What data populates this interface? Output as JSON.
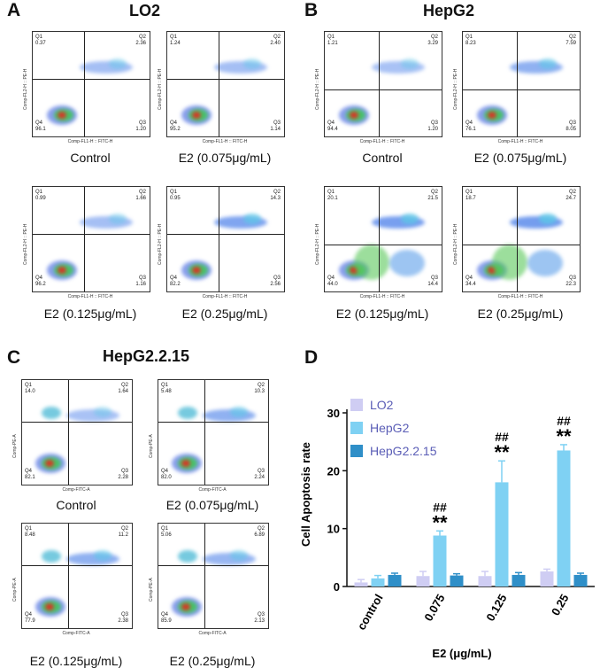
{
  "panels": {
    "A": {
      "letter": "A",
      "title": "LO2"
    },
    "B": {
      "letter": "B",
      "title": "HepG2"
    },
    "C": {
      "letter": "C",
      "title": "HepG2.2.15"
    },
    "D": {
      "letter": "D"
    }
  },
  "flow_axis": {
    "ab_x": "Comp-FL1-H :: FITC-H",
    "ab_y": "Comp-FL2-H :: PE-H",
    "c_x": "Comp-FITC-A",
    "c_y": "Comp-PE-A"
  },
  "quadrant_labels": {
    "q1": "Q1",
    "q2": "Q2",
    "q3": "Q3",
    "q4": "Q4"
  },
  "flow_plots": {
    "A": [
      {
        "caption": "Control",
        "q1": "0.37",
        "q2": "2.36",
        "q3": "1.20",
        "q4": "96.1"
      },
      {
        "caption": "E2  (0.075μg/mL)",
        "q1": "1.24",
        "q2": "2.40",
        "q3": "1.14",
        "q4": "95.2"
      },
      {
        "caption": "E2  (0.125μg/mL)",
        "q1": "0.99",
        "q2": "1.66",
        "q3": "1.16",
        "q4": "96.2"
      },
      {
        "caption": "E2  (0.25μg/mL)",
        "q1": "0.95",
        "q2": "14.3",
        "q3": "2.56",
        "q4": "82.2"
      }
    ],
    "B": [
      {
        "caption": "Control",
        "q1": "1.21",
        "q2": "3.29",
        "q3": "1.20",
        "q4": "94.4"
      },
      {
        "caption": "E2  (0.075μg/mL)",
        "q1": "8.23",
        "q2": "7.59",
        "q3": "8.05",
        "q4": "76.1"
      },
      {
        "caption": "E2  (0.125μg/mL)",
        "q1": "20.1",
        "q2": "21.5",
        "q3": "14.4",
        "q4": "44.0"
      },
      {
        "caption": "E2  (0.25μg/mL)",
        "q1": "18.7",
        "q2": "24.7",
        "q3": "22.3",
        "q4": "34.4"
      }
    ],
    "C": [
      {
        "caption": "Control",
        "q1": "14.0",
        "q2": "1.64",
        "q3": "2.28",
        "q4": "82.1"
      },
      {
        "caption": "E2  (0.075μg/mL)",
        "q1": "5.48",
        "q2": "10.3",
        "q3": "2.24",
        "q4": "82.0"
      },
      {
        "caption": "E2  (0.125μg/mL)",
        "q1": "8.48",
        "q2": "11.2",
        "q3": "2.38",
        "q4": "77.9"
      },
      {
        "caption": "E2  (0.25μg/mL)",
        "q1": "5.06",
        "q2": "6.89",
        "q3": "2.13",
        "q4": "85.9"
      }
    ]
  },
  "chart_data": {
    "type": "bar",
    "title": "",
    "xlabel": "E2 (μg/mL)",
    "ylabel": "Cell Apoptosis rate",
    "categories": [
      "control",
      "0.075",
      "0.125",
      "0.25"
    ],
    "ylim": [
      0,
      30
    ],
    "yticks": [
      0,
      10,
      20,
      30
    ],
    "legend_position": "top-left",
    "series": [
      {
        "name": "LO2",
        "color": "#cfcdf3",
        "values": [
          0.7,
          1.8,
          1.8,
          2.6
        ],
        "errors": [
          0.5,
          0.8,
          0.8,
          0.4
        ]
      },
      {
        "name": "HepG2",
        "color": "#7fd1f3",
        "values": [
          1.4,
          8.8,
          18.0,
          23.5
        ],
        "errors": [
          0.5,
          0.8,
          3.7,
          1.0
        ]
      },
      {
        "name": "HepG2.2.15",
        "color": "#2f8fc8",
        "values": [
          2.0,
          1.9,
          2.0,
          2.0
        ],
        "errors": [
          0.3,
          0.3,
          0.4,
          0.3
        ]
      }
    ],
    "annotations": [
      {
        "category": "0.075",
        "text_top": "##",
        "text_bottom": "**"
      },
      {
        "category": "0.125",
        "text_top": "##",
        "text_bottom": "**"
      },
      {
        "category": "0.25",
        "text_top": "##",
        "text_bottom": "**"
      }
    ]
  }
}
